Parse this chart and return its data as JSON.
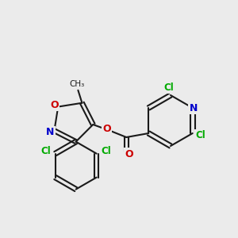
{
  "background_color": "#ebebeb",
  "bond_color": "#1a1a1a",
  "bond_width": 1.5,
  "atom_colors": {
    "C": "#1a1a1a",
    "N": "#0000cc",
    "O": "#cc0000",
    "Cl": "#00aa00"
  },
  "font_size_label": 9,
  "font_size_cl": 8.5
}
